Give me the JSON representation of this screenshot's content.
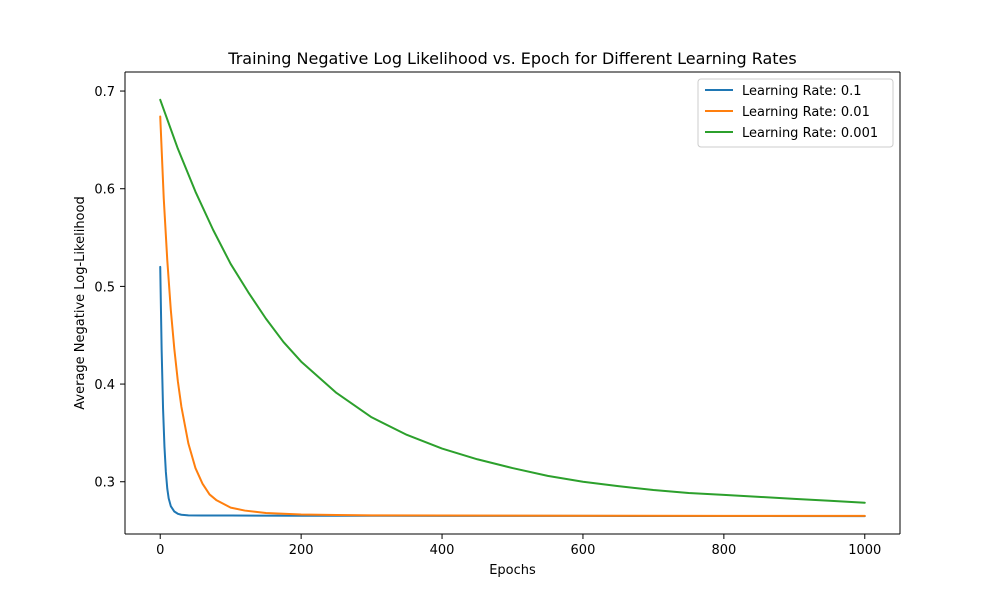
{
  "chart_data": {
    "type": "line",
    "title": "Training Negative Log Likelihood vs. Epoch for Different Learning Rates",
    "xlabel": "Epochs",
    "ylabel": "Average Negative Log-Likelihood",
    "xlim": [
      -50,
      1050
    ],
    "ylim": [
      0.2465,
      0.7195
    ],
    "xticks": [
      0,
      200,
      400,
      600,
      800,
      1000
    ],
    "yticks": [
      0.3,
      0.4,
      0.5,
      0.6,
      0.7
    ],
    "xtick_labels": [
      "0",
      "200",
      "400",
      "600",
      "800",
      "1000"
    ],
    "ytick_labels": [
      "0.3",
      "0.4",
      "0.5",
      "0.6",
      "0.7"
    ],
    "grid": false,
    "legend_position": "upper-right",
    "series": [
      {
        "name": "Learning Rate: 0.1",
        "color": "#1f77b4",
        "x": [
          0,
          2,
          4,
          6,
          8,
          10,
          12,
          15,
          20,
          25,
          30,
          40,
          60,
          100,
          200,
          400,
          600,
          800,
          1000
        ],
        "y": [
          0.52,
          0.435,
          0.375,
          0.336,
          0.31,
          0.293,
          0.283,
          0.275,
          0.2695,
          0.2672,
          0.2662,
          0.2656,
          0.2655,
          0.2654,
          0.2652,
          0.2651,
          0.265,
          0.2649,
          0.2648
        ]
      },
      {
        "name": "Learning Rate: 0.01",
        "color": "#ff7f0e",
        "x": [
          0,
          5,
          10,
          15,
          20,
          25,
          30,
          40,
          50,
          60,
          70,
          80,
          100,
          120,
          150,
          200,
          250,
          300,
          400,
          500,
          600,
          800,
          1000
        ],
        "y": [
          0.674,
          0.59,
          0.527,
          0.476,
          0.436,
          0.403,
          0.377,
          0.339,
          0.314,
          0.298,
          0.287,
          0.281,
          0.2735,
          0.2705,
          0.268,
          0.2665,
          0.2659,
          0.2656,
          0.2654,
          0.2653,
          0.2652,
          0.2651,
          0.265
        ]
      },
      {
        "name": "Learning Rate: 0.001",
        "color": "#2ca02c",
        "x": [
          0,
          25,
          50,
          75,
          100,
          125,
          150,
          175,
          200,
          250,
          300,
          350,
          400,
          450,
          500,
          550,
          600,
          650,
          700,
          750,
          800,
          850,
          900,
          950,
          1000
        ],
        "y": [
          0.691,
          0.641,
          0.597,
          0.558,
          0.523,
          0.494,
          0.467,
          0.443,
          0.423,
          0.391,
          0.366,
          0.348,
          0.334,
          0.323,
          0.314,
          0.306,
          0.3,
          0.2955,
          0.2915,
          0.2885,
          0.2865,
          0.2845,
          0.2825,
          0.2805,
          0.2785
        ]
      }
    ]
  }
}
